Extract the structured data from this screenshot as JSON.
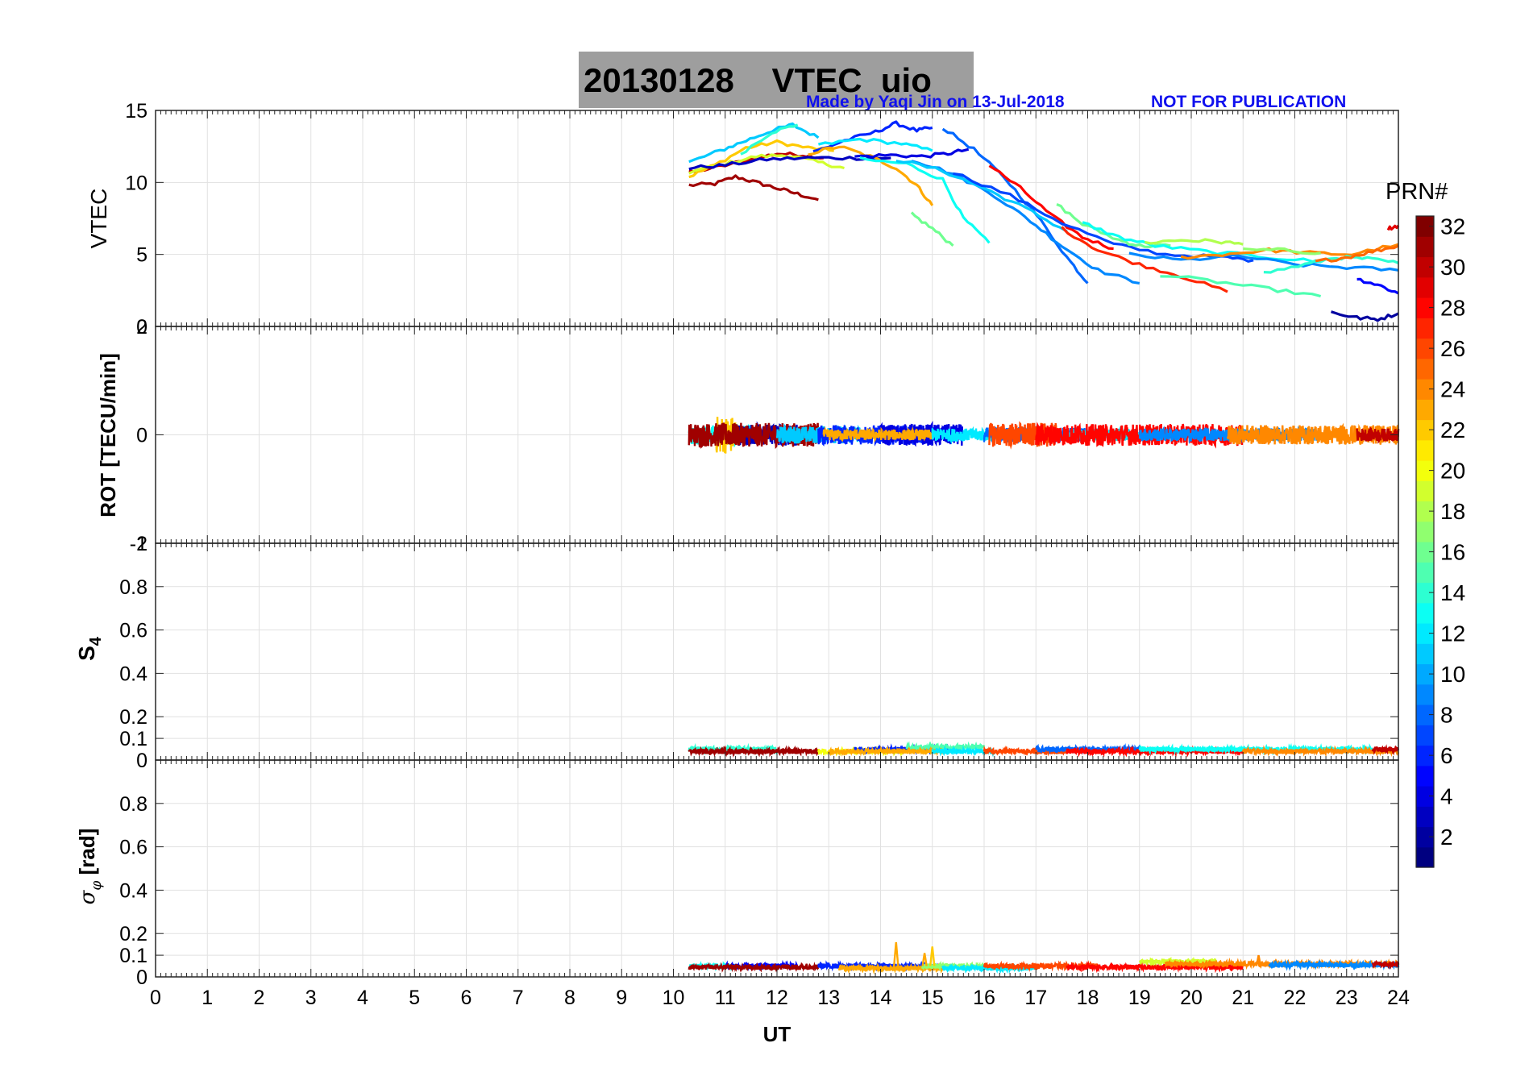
{
  "header": {
    "title": "20130128    VTEC  uio",
    "credit": "Made by Yaqi Jin on 13-Jul-2018",
    "notice": "NOT FOR PUBLICATION"
  },
  "colorbar": {
    "label": "PRN#",
    "min": 1,
    "max": 32,
    "ticks": [
      "2",
      "4",
      "6",
      "8",
      "10",
      "12",
      "14",
      "16",
      "18",
      "20",
      "22",
      "24",
      "26",
      "28",
      "30",
      "32"
    ]
  },
  "chart_data": [
    {
      "type": "line",
      "panel": "vtec",
      "ylabel": "VTEC",
      "ylim": [
        0,
        15
      ],
      "yticks": [
        "0",
        "5",
        "10",
        "15"
      ],
      "xlim": [
        0,
        24
      ],
      "series": [
        {
          "prn": 31,
          "x": [
            10.3,
            10.8,
            11.2,
            11.6,
            12.0,
            12.4,
            12.8
          ],
          "y": [
            9.8,
            9.9,
            10.4,
            10.0,
            9.6,
            9.2,
            8.8
          ]
        },
        {
          "prn": 30,
          "x": [
            10.3,
            10.9,
            11.5,
            12.0,
            12.5,
            12.9
          ],
          "y": [
            10.7,
            11.1,
            11.6,
            12.0,
            11.9,
            11.7
          ]
        },
        {
          "prn": 22,
          "x": [
            10.3,
            10.8,
            11.4,
            12.0,
            12.6,
            13.1
          ],
          "y": [
            10.4,
            11.2,
            12.4,
            12.8,
            12.4,
            12.2
          ]
        },
        {
          "prn": 19,
          "x": [
            10.3,
            11.0,
            11.6,
            12.2,
            12.8,
            13.3
          ],
          "y": [
            10.7,
            11.3,
            11.8,
            11.9,
            11.4,
            11.0
          ]
        },
        {
          "prn": 11,
          "x": [
            10.3,
            10.9,
            11.4,
            11.9,
            12.3,
            12.8
          ],
          "y": [
            11.4,
            12.2,
            12.9,
            13.6,
            14.0,
            13.1
          ]
        },
        {
          "prn": 14,
          "x": [
            11.3,
            11.9,
            12.4
          ],
          "y": [
            12.0,
            13.5,
            14.0
          ]
        },
        {
          "prn": 3,
          "x": [
            10.3,
            11.0,
            11.8,
            12.6,
            13.4,
            14.2
          ],
          "y": [
            11.0,
            11.2,
            11.6,
            11.7,
            11.7,
            11.7
          ]
        },
        {
          "prn": 6,
          "x": [
            12.7,
            13.3,
            13.9,
            14.3,
            14.7,
            15.0
          ],
          "y": [
            12.1,
            12.9,
            13.5,
            14.1,
            13.6,
            13.8
          ]
        },
        {
          "prn": 12,
          "x": [
            12.8,
            13.6,
            14.4,
            15.0
          ],
          "y": [
            12.6,
            13.0,
            12.7,
            12.2
          ]
        },
        {
          "prn": 23,
          "x": [
            12.6,
            13.2,
            13.8,
            14.3,
            14.7,
            15.0
          ],
          "y": [
            12.0,
            12.5,
            11.8,
            11.0,
            9.8,
            8.4
          ]
        },
        {
          "prn": 4,
          "x": [
            13.5,
            14.2,
            14.8,
            15.3,
            15.7
          ],
          "y": [
            11.8,
            11.9,
            11.8,
            12.0,
            12.3
          ]
        },
        {
          "prn": 13,
          "x": [
            13.6,
            14.5,
            15.2,
            15.6,
            16.1
          ],
          "y": [
            11.6,
            11.3,
            10.2,
            7.5,
            5.8
          ]
        },
        {
          "prn": 16,
          "x": [
            14.6,
            15.0,
            15.4
          ],
          "y": [
            7.8,
            6.8,
            5.6
          ]
        },
        {
          "prn": 8,
          "x": [
            15.2,
            15.8,
            16.4,
            17.0,
            17.6,
            18.0
          ],
          "y": [
            13.8,
            12.3,
            10.3,
            7.8,
            4.8,
            3.0
          ]
        },
        {
          "prn": 9,
          "x": [
            14.6,
            15.4,
            16.2,
            16.9,
            17.5,
            18.2,
            19.0
          ],
          "y": [
            11.6,
            10.6,
            9.1,
            7.3,
            5.6,
            3.9,
            3.0
          ]
        },
        {
          "prn": 11,
          "x": [
            14.3,
            15.2,
            16.0,
            16.8,
            17.6
          ],
          "y": [
            11.6,
            10.8,
            9.6,
            8.2,
            6.6
          ]
        },
        {
          "prn": 28,
          "x": [
            16.1,
            16.7,
            17.3,
            17.9,
            18.5
          ],
          "y": [
            11.2,
            9.6,
            7.7,
            6.2,
            5.4
          ]
        },
        {
          "prn": 7,
          "x": [
            15.4,
            16.5,
            17.5,
            18.5,
            19.5,
            20.6,
            21.2
          ],
          "y": [
            10.7,
            9.1,
            7.2,
            5.7,
            5.0,
            4.8,
            4.6
          ]
        },
        {
          "prn": 27,
          "x": [
            17.5,
            18.2,
            19.0,
            19.8,
            20.7
          ],
          "y": [
            6.8,
            5.3,
            4.3,
            3.5,
            2.4
          ]
        },
        {
          "prn": 16,
          "x": [
            17.4,
            17.9,
            18.6,
            19.0,
            19.6
          ],
          "y": [
            8.5,
            7.1,
            6.0,
            5.6,
            5.6
          ]
        },
        {
          "prn": 13,
          "x": [
            17.9,
            18.6,
            19.3,
            20.3,
            21.5,
            22.5
          ],
          "y": [
            7.2,
            6.2,
            5.6,
            5.2,
            4.8,
            4.5
          ]
        },
        {
          "prn": 18,
          "x": [
            19.1,
            19.8,
            20.5,
            21.0
          ],
          "y": [
            5.8,
            6.0,
            5.9,
            5.7
          ]
        },
        {
          "prn": 15,
          "x": [
            19.4,
            20.5,
            21.5,
            22.5
          ],
          "y": [
            3.6,
            3.1,
            2.6,
            2.1
          ]
        },
        {
          "prn": 9,
          "x": [
            18.8,
            19.8,
            20.9,
            22.0,
            23.0,
            24.0
          ],
          "y": [
            5.0,
            4.6,
            4.9,
            4.3,
            4.1,
            3.9
          ]
        },
        {
          "prn": 24,
          "x": [
            19.8,
            20.6,
            21.5,
            22.3,
            23.1,
            24.0
          ],
          "y": [
            4.8,
            5.0,
            5.3,
            5.1,
            5.0,
            5.7
          ]
        },
        {
          "prn": 17,
          "x": [
            21.0,
            21.8,
            22.5
          ],
          "y": [
            5.3,
            5.3,
            5.1
          ]
        },
        {
          "prn": 14,
          "x": [
            21.4,
            22.2,
            22.8,
            23.4,
            24.0
          ],
          "y": [
            3.7,
            4.3,
            4.8,
            4.7,
            4.4
          ]
        },
        {
          "prn": 25,
          "x": [
            22.4,
            23.0,
            23.5,
            24.0
          ],
          "y": [
            4.5,
            4.8,
            5.2,
            5.6
          ]
        },
        {
          "prn": 5,
          "x": [
            23.2,
            23.6,
            24.0
          ],
          "y": [
            3.3,
            2.9,
            2.3
          ]
        },
        {
          "prn": 2,
          "x": [
            22.7,
            23.2,
            23.6,
            24.0
          ],
          "y": [
            1.0,
            0.6,
            0.5,
            0.9
          ]
        },
        {
          "prn": 29,
          "x": [
            23.8,
            24.0
          ],
          "y": [
            6.8,
            7.0
          ]
        }
      ]
    },
    {
      "type": "line",
      "panel": "rot",
      "ylabel": "ROT [TECU/min]",
      "ylim": [
        -2,
        2
      ],
      "yticks": [
        "-2",
        "0",
        "2"
      ],
      "xlim": [
        0,
        24
      ],
      "segments": [
        {
          "prn": 13,
          "x0": 10.3,
          "x1": 11.5,
          "amp": 0.18
        },
        {
          "prn": 22,
          "x0": 10.8,
          "x1": 11.2,
          "amp": 0.35
        },
        {
          "prn": 3,
          "x0": 11.2,
          "x1": 12.4,
          "amp": 0.2
        },
        {
          "prn": 31,
          "x0": 10.3,
          "x1": 12.8,
          "amp": 0.22
        },
        {
          "prn": 11,
          "x0": 12.0,
          "x1": 13.6,
          "amp": 0.16
        },
        {
          "prn": 6,
          "x0": 12.8,
          "x1": 14.8,
          "amp": 0.18
        },
        {
          "prn": 4,
          "x0": 14.0,
          "x1": 15.6,
          "amp": 0.2
        },
        {
          "prn": 23,
          "x0": 12.9,
          "x1": 15.0,
          "amp": 0.1
        },
        {
          "prn": 12,
          "x0": 15.0,
          "x1": 16.2,
          "amp": 0.12
        },
        {
          "prn": 8,
          "x0": 16.0,
          "x1": 18.0,
          "amp": 0.14
        },
        {
          "prn": 26,
          "x0": 16.1,
          "x1": 17.4,
          "amp": 0.22
        },
        {
          "prn": 12,
          "x0": 17.6,
          "x1": 19.0,
          "amp": 0.12
        },
        {
          "prn": 28,
          "x0": 17.0,
          "x1": 21.0,
          "amp": 0.2
        },
        {
          "prn": 9,
          "x0": 19.0,
          "x1": 22.5,
          "amp": 0.12
        },
        {
          "prn": 24,
          "x0": 20.7,
          "x1": 24.0,
          "amp": 0.18
        },
        {
          "prn": 30,
          "x0": 23.2,
          "x1": 24.0,
          "amp": 0.12
        }
      ]
    },
    {
      "type": "line",
      "panel": "s4",
      "ylabel": "S4",
      "ylim": [
        0,
        1
      ],
      "yticks": [
        "0",
        "0.1",
        "0.2",
        "0.4",
        "0.6",
        "0.8",
        "1"
      ],
      "xlim": [
        0,
        24
      ],
      "segments": [
        {
          "prn": 14,
          "x0": 10.3,
          "x1": 12.0,
          "level": 0.05
        },
        {
          "prn": 31,
          "x0": 10.3,
          "x1": 12.8,
          "level": 0.04
        },
        {
          "prn": 20,
          "x0": 12.8,
          "x1": 14.5,
          "level": 0.04
        },
        {
          "prn": 6,
          "x0": 13.5,
          "x1": 15.5,
          "level": 0.05
        },
        {
          "prn": 15,
          "x0": 14.5,
          "x1": 16.0,
          "level": 0.06
        },
        {
          "prn": 23,
          "x0": 13.0,
          "x1": 15.2,
          "level": 0.04
        },
        {
          "prn": 12,
          "x0": 15.0,
          "x1": 16.2,
          "level": 0.04
        },
        {
          "prn": 26,
          "x0": 16.0,
          "x1": 17.6,
          "level": 0.04
        },
        {
          "prn": 8,
          "x0": 17.0,
          "x1": 19.0,
          "level": 0.05
        },
        {
          "prn": 28,
          "x0": 17.6,
          "x1": 21.0,
          "level": 0.04
        },
        {
          "prn": 13,
          "x0": 19.0,
          "x1": 23.5,
          "level": 0.05
        },
        {
          "prn": 24,
          "x0": 21.0,
          "x1": 24.0,
          "level": 0.04
        },
        {
          "prn": 30,
          "x0": 23.5,
          "x1": 24.0,
          "level": 0.05
        }
      ]
    },
    {
      "type": "line",
      "panel": "sigma_phi",
      "ylabel": "σφ [rad]",
      "ylim": [
        0,
        1
      ],
      "yticks": [
        "0",
        "0.1",
        "0.2",
        "0.4",
        "0.6",
        "0.8"
      ],
      "xlim": [
        0,
        24
      ],
      "segments": [
        {
          "prn": 13,
          "x0": 10.3,
          "x1": 11.2,
          "level": 0.05
        },
        {
          "prn": 5,
          "x0": 11.0,
          "x1": 12.4,
          "level": 0.05
        },
        {
          "prn": 31,
          "x0": 10.3,
          "x1": 12.8,
          "level": 0.045
        },
        {
          "prn": 6,
          "x0": 12.8,
          "x1": 15.2,
          "level": 0.05
        },
        {
          "prn": 23,
          "x0": 13.2,
          "x1": 15.2,
          "level": 0.04
        },
        {
          "prn": 17,
          "x0": 14.8,
          "x1": 16.0,
          "level": 0.05
        },
        {
          "prn": 12,
          "x0": 15.2,
          "x1": 17.0,
          "level": 0.04
        },
        {
          "prn": 26,
          "x0": 16.0,
          "x1": 18.2,
          "level": 0.05
        },
        {
          "prn": 28,
          "x0": 17.6,
          "x1": 21.0,
          "level": 0.045
        },
        {
          "prn": 19,
          "x0": 19.0,
          "x1": 20.5,
          "level": 0.07
        },
        {
          "prn": 24,
          "x0": 19.5,
          "x1": 24.0,
          "level": 0.06
        },
        {
          "prn": 9,
          "x0": 21.5,
          "x1": 24.0,
          "level": 0.055
        },
        {
          "prn": 30,
          "x0": 23.5,
          "x1": 24.0,
          "level": 0.06
        }
      ],
      "spikes": [
        {
          "prn": 23,
          "x": 14.3,
          "y": 0.16
        },
        {
          "prn": 23,
          "x": 14.85,
          "y": 0.11
        },
        {
          "prn": 22,
          "x": 15.0,
          "y": 0.14
        },
        {
          "prn": 24,
          "x": 21.3,
          "y": 0.1
        }
      ]
    }
  ],
  "xaxis": {
    "label": "UT",
    "ticks": [
      "0",
      "1",
      "2",
      "3",
      "4",
      "5",
      "6",
      "7",
      "8",
      "9",
      "10",
      "11",
      "12",
      "13",
      "14",
      "15",
      "16",
      "17",
      "18",
      "19",
      "20",
      "21",
      "22",
      "23",
      "24"
    ]
  }
}
